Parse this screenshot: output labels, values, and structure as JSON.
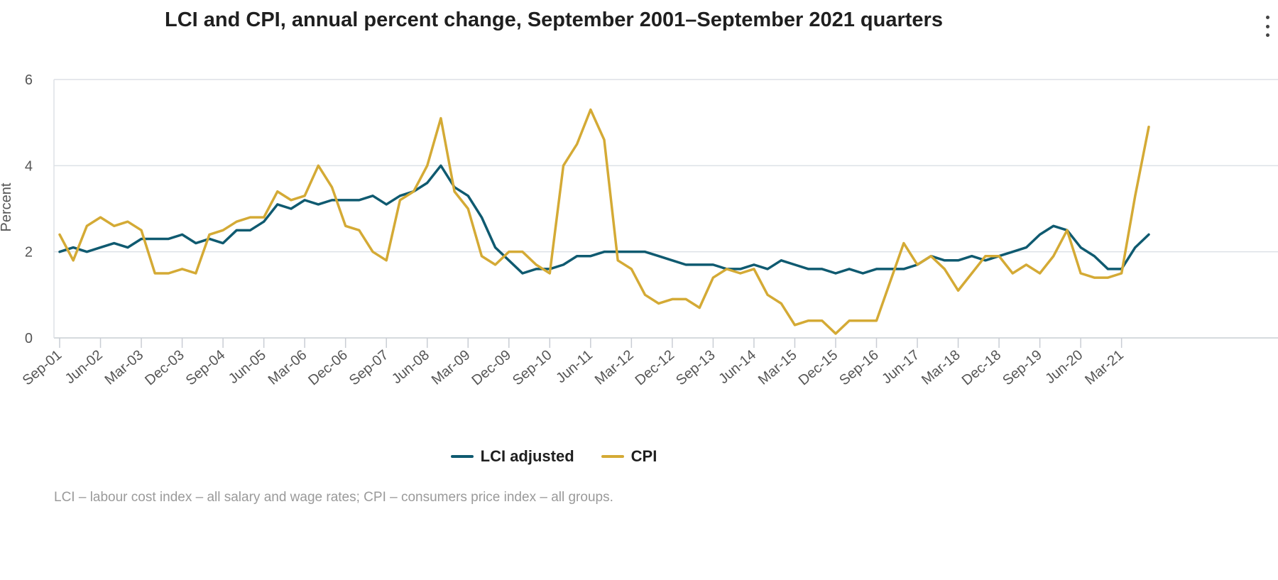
{
  "chart_data": {
    "type": "line",
    "title": "LCI and CPI, annual percent change, September 2001–September 2021 quarters",
    "ylabel": "Percent",
    "xlabel": "",
    "ylim": [
      0,
      6
    ],
    "yticks": [
      0,
      2,
      4,
      6
    ],
    "grid": true,
    "legend_position": "bottom-center",
    "x": [
      "Sep-01",
      "Dec-01",
      "Mar-02",
      "Jun-02",
      "Sep-02",
      "Dec-02",
      "Mar-03",
      "Jun-03",
      "Sep-03",
      "Dec-03",
      "Mar-04",
      "Jun-04",
      "Sep-04",
      "Dec-04",
      "Mar-05",
      "Jun-05",
      "Sep-05",
      "Dec-05",
      "Mar-06",
      "Jun-06",
      "Sep-06",
      "Dec-06",
      "Mar-07",
      "Jun-07",
      "Sep-07",
      "Dec-07",
      "Mar-08",
      "Jun-08",
      "Sep-08",
      "Dec-08",
      "Mar-09",
      "Jun-09",
      "Sep-09",
      "Dec-09",
      "Mar-10",
      "Jun-10",
      "Sep-10",
      "Dec-10",
      "Mar-11",
      "Jun-11",
      "Sep-11",
      "Dec-11",
      "Mar-12",
      "Jun-12",
      "Sep-12",
      "Dec-12",
      "Mar-13",
      "Jun-13",
      "Sep-13",
      "Dec-13",
      "Mar-14",
      "Jun-14",
      "Sep-14",
      "Dec-14",
      "Mar-15",
      "Jun-15",
      "Sep-15",
      "Dec-15",
      "Mar-16",
      "Jun-16",
      "Sep-16",
      "Dec-16",
      "Mar-17",
      "Jun-17",
      "Sep-17",
      "Dec-17",
      "Mar-18",
      "Jun-18",
      "Sep-18",
      "Dec-18",
      "Mar-19",
      "Jun-19",
      "Sep-19",
      "Dec-19",
      "Mar-20",
      "Jun-20",
      "Sep-20",
      "Dec-20",
      "Mar-21",
      "Jun-21",
      "Sep-21"
    ],
    "tick_labels": [
      "Sep-01",
      "Jun-02",
      "Mar-03",
      "Dec-03",
      "Sep-04",
      "Jun-05",
      "Mar-06",
      "Dec-06",
      "Sep-07",
      "Jun-08",
      "Mar-09",
      "Dec-09",
      "Sep-10",
      "Jun-11",
      "Mar-12",
      "Dec-12",
      "Sep-13",
      "Jun-14",
      "Mar-15",
      "Dec-15",
      "Sep-16",
      "Jun-17",
      "Mar-18",
      "Dec-18",
      "Sep-19",
      "Jun-20",
      "Mar-21"
    ],
    "series": [
      {
        "name": "LCI adjusted",
        "color": "#0f5a70",
        "values": [
          2.0,
          2.1,
          2.0,
          2.1,
          2.2,
          2.1,
          2.3,
          2.3,
          2.3,
          2.4,
          2.2,
          2.3,
          2.2,
          2.5,
          2.5,
          2.7,
          3.1,
          3.0,
          3.2,
          3.1,
          3.2,
          3.2,
          3.2,
          3.3,
          3.1,
          3.3,
          3.4,
          3.6,
          4.0,
          3.5,
          3.3,
          2.8,
          2.1,
          1.8,
          1.5,
          1.6,
          1.6,
          1.7,
          1.9,
          1.9,
          2.0,
          2.0,
          2.0,
          2.0,
          1.9,
          1.8,
          1.7,
          1.7,
          1.7,
          1.6,
          1.6,
          1.7,
          1.6,
          1.8,
          1.7,
          1.6,
          1.6,
          1.5,
          1.6,
          1.5,
          1.6,
          1.6,
          1.6,
          1.7,
          1.9,
          1.8,
          1.8,
          1.9,
          1.8,
          1.9,
          2.0,
          2.1,
          2.4,
          2.6,
          2.5,
          2.1,
          1.9,
          1.6,
          1.6,
          2.1,
          2.4
        ]
      },
      {
        "name": "CPI",
        "color": "#d4aa35",
        "values": [
          2.4,
          1.8,
          2.6,
          2.8,
          2.6,
          2.7,
          2.5,
          1.5,
          1.5,
          1.6,
          1.5,
          2.4,
          2.5,
          2.7,
          2.8,
          2.8,
          3.4,
          3.2,
          3.3,
          4.0,
          3.5,
          2.6,
          2.5,
          2.0,
          1.8,
          3.2,
          3.4,
          4.0,
          5.1,
          3.4,
          3.0,
          1.9,
          1.7,
          2.0,
          2.0,
          1.7,
          1.5,
          4.0,
          4.5,
          5.3,
          4.6,
          1.8,
          1.6,
          1.0,
          0.8,
          0.9,
          0.9,
          0.7,
          1.4,
          1.6,
          1.5,
          1.6,
          1.0,
          0.8,
          0.3,
          0.4,
          0.4,
          0.1,
          0.4,
          0.4,
          0.4,
          1.3,
          2.2,
          1.7,
          1.9,
          1.6,
          1.1,
          1.5,
          1.9,
          1.9,
          1.5,
          1.7,
          1.5,
          1.9,
          2.5,
          1.5,
          1.4,
          1.4,
          1.5,
          3.3,
          4.9
        ]
      }
    ]
  },
  "footnote": "LCI – labour cost index – all salary and wage rates; CPI – consumers price index – all groups."
}
